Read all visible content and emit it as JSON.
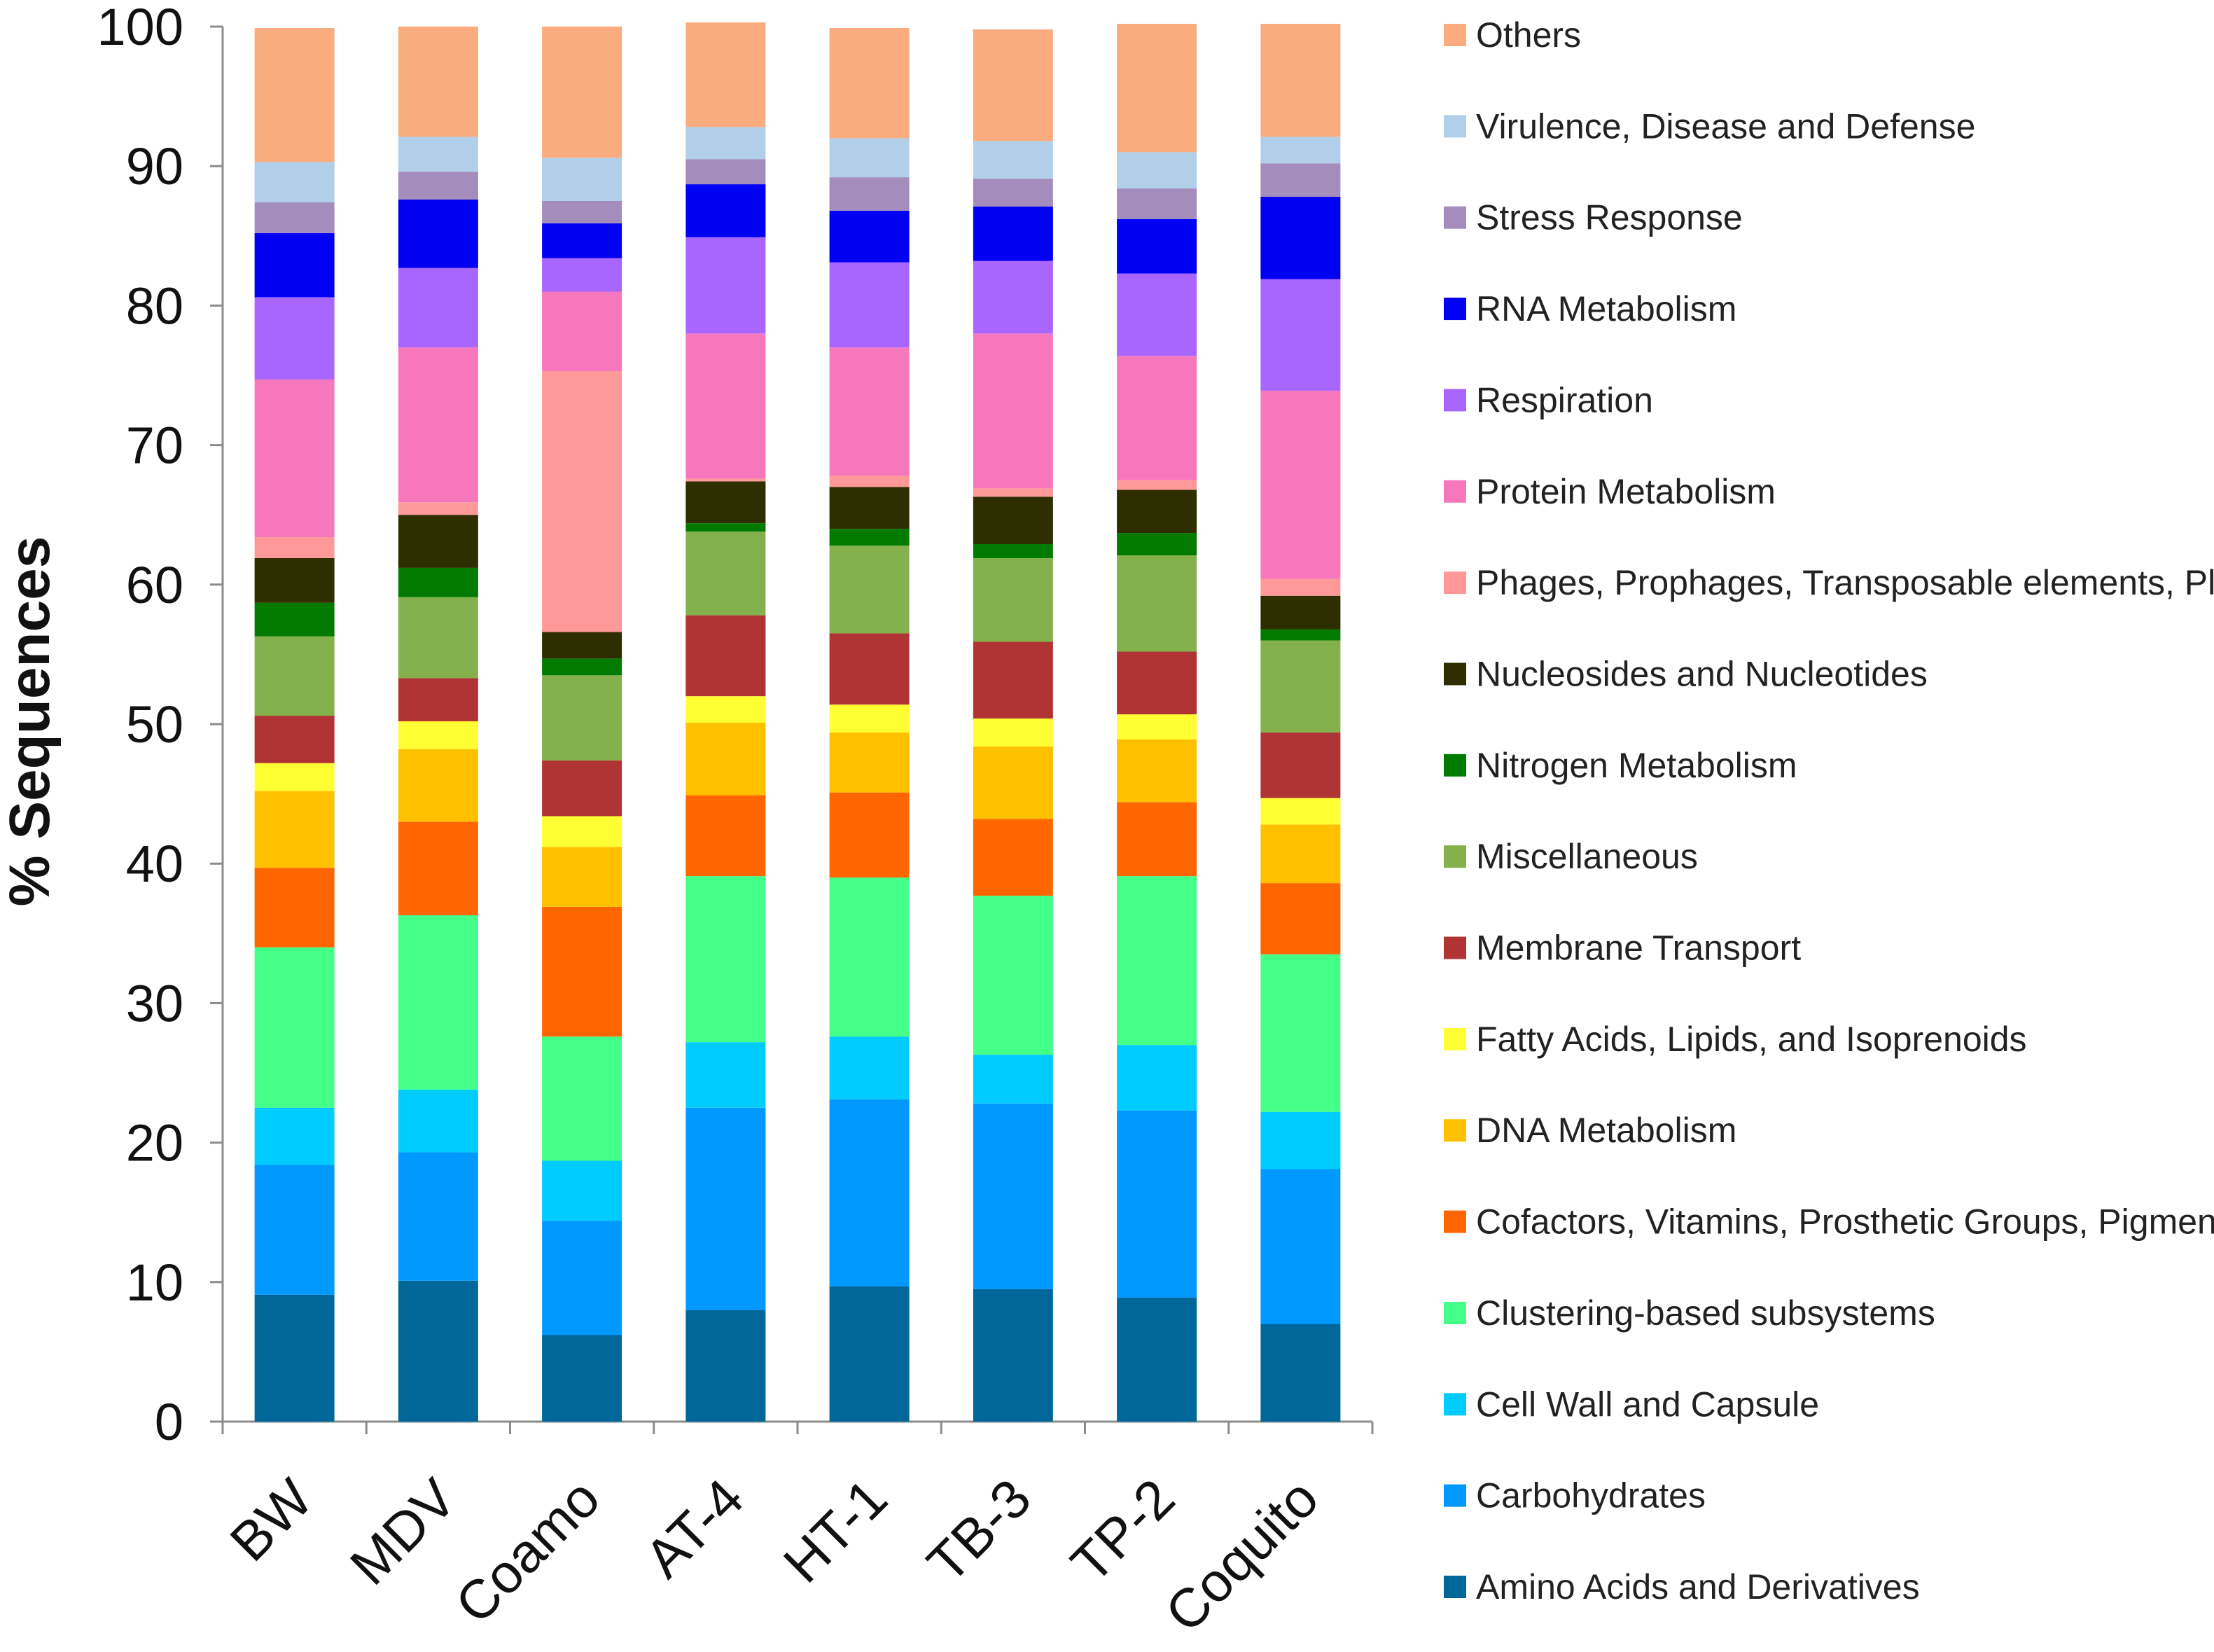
{
  "chart_data": {
    "type": "bar",
    "stacked": true,
    "title": "",
    "xlabel": "",
    "ylabel": "% Sequences",
    "ylim": [
      0,
      100
    ],
    "yticks": [
      "0",
      "10",
      "20",
      "30",
      "40",
      "50",
      "60",
      "70",
      "80",
      "90",
      "100"
    ],
    "legend_position": "right",
    "categories": [
      "BW",
      "MDV",
      "Coamo",
      "AT-4",
      "HT-1",
      "TB-3",
      "TP-2",
      "Coquito"
    ],
    "series": [
      {
        "name": "Amino Acids and Derivatives",
        "color": "#00679a",
        "values": [
          9.1,
          10.1,
          6.2,
          8.0,
          9.7,
          9.5,
          8.9,
          7.0
        ]
      },
      {
        "name": "Carbohydrates",
        "color": "#0099ff",
        "values": [
          9.3,
          9.2,
          8.2,
          14.5,
          13.4,
          13.3,
          13.4,
          11.1
        ]
      },
      {
        "name": "Cell Wall and Capsule",
        "color": "#00ccff",
        "values": [
          4.1,
          4.5,
          4.3,
          4.7,
          4.5,
          3.5,
          4.7,
          4.1
        ]
      },
      {
        "name": "Clustering-based subsystems",
        "color": "#44ff88",
        "values": [
          11.5,
          12.5,
          8.9,
          11.9,
          11.4,
          11.4,
          12.1,
          11.3
        ]
      },
      {
        "name": "Cofactors, Vitamins, Prosthetic Groups, Pigments",
        "color": "#ff6600",
        "values": [
          5.7,
          6.7,
          9.3,
          5.8,
          6.1,
          5.5,
          5.3,
          5.1
        ]
      },
      {
        "name": "DNA Metabolism",
        "color": "#ffc000",
        "values": [
          5.5,
          5.2,
          4.3,
          5.2,
          4.3,
          5.2,
          4.5,
          4.2
        ]
      },
      {
        "name": "Fatty Acids, Lipids, and Isoprenoids",
        "color": "#ffff33",
        "values": [
          2.0,
          2.0,
          2.2,
          1.9,
          2.0,
          2.0,
          1.8,
          1.9
        ]
      },
      {
        "name": "Membrane Transport",
        "color": "#b03434",
        "values": [
          3.4,
          3.1,
          4.0,
          5.8,
          5.1,
          5.5,
          4.5,
          4.7
        ]
      },
      {
        "name": "Miscellaneous",
        "color": "#84b14c",
        "values": [
          5.7,
          5.8,
          6.1,
          6.0,
          6.3,
          6.0,
          6.9,
          6.6
        ]
      },
      {
        "name": "Nitrogen Metabolism",
        "color": "#007a00",
        "values": [
          2.4,
          2.1,
          1.2,
          0.6,
          1.2,
          1.0,
          1.6,
          0.8
        ]
      },
      {
        "name": "Nucleosides and Nucleotides",
        "color": "#2e2e00",
        "values": [
          3.2,
          3.8,
          1.9,
          3.0,
          3.0,
          3.4,
          3.1,
          2.4
        ]
      },
      {
        "name": "Phages, Prophages, Transposable elements, Plasmids",
        "color": "#ff9999",
        "values": [
          1.5,
          0.9,
          18.7,
          0.2,
          0.8,
          0.6,
          0.7,
          1.2
        ]
      },
      {
        "name": "Protein Metabolism",
        "color": "#f777bd",
        "values": [
          11.3,
          11.1,
          5.7,
          10.4,
          9.2,
          11.1,
          8.9,
          13.5
        ]
      },
      {
        "name": "Respiration",
        "color": "#a866ff",
        "values": [
          5.9,
          5.7,
          2.4,
          6.9,
          6.1,
          5.2,
          5.9,
          8.0
        ]
      },
      {
        "name": "RNA Metabolism",
        "color": "#0000f2",
        "values": [
          4.6,
          4.9,
          2.5,
          3.8,
          3.7,
          3.9,
          3.9,
          5.9
        ]
      },
      {
        "name": "Stress Response",
        "color": "#a48cbc",
        "values": [
          2.2,
          2.0,
          1.6,
          1.8,
          2.4,
          2.0,
          2.2,
          2.4
        ]
      },
      {
        "name": "Virulence, Disease and Defense",
        "color": "#b2cfea",
        "values": [
          2.9,
          2.5,
          3.1,
          2.3,
          2.8,
          2.7,
          2.6,
          1.9
        ]
      },
      {
        "name": "Others",
        "color": "#fbac7e",
        "values": [
          9.6,
          7.9,
          9.4,
          7.5,
          7.9,
          8.0,
          9.2,
          8.1
        ]
      }
    ]
  }
}
